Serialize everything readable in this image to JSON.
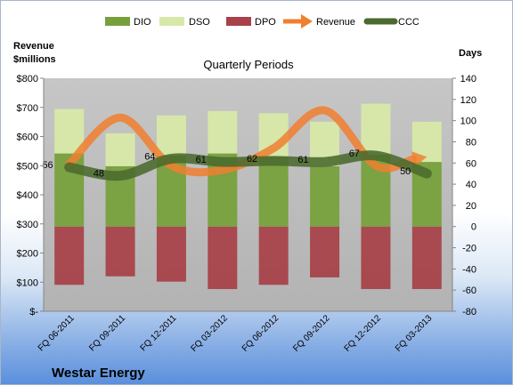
{
  "company_name": "Westar Energy",
  "chart_data": {
    "type": "bar",
    "title": "Quarterly Periods",
    "ylabel_left": "Revenue $millions",
    "ylabel_left_lines": [
      "Revenue",
      "$millions"
    ],
    "ylabel_right": "Days",
    "categories": [
      "FQ 06-2011",
      "FQ 09-2011",
      "FQ 12-2011",
      "FQ 03-2012",
      "FQ 06-2012",
      "FQ 09-2012",
      "FQ 12-2012",
      "FQ 03-2013"
    ],
    "left_axis": {
      "ylim": [
        0,
        800
      ],
      "ticks": [
        0,
        100,
        200,
        300,
        400,
        500,
        600,
        700,
        800
      ],
      "tick_labels": [
        "$-",
        "$100",
        "$200",
        "$300",
        "$400",
        "$500",
        "$600",
        "$700",
        "$800"
      ]
    },
    "right_axis": {
      "ylim": [
        -80,
        140
      ],
      "ticks": [
        -80,
        -60,
        -40,
        -20,
        0,
        20,
        40,
        60,
        80,
        100,
        120,
        140
      ],
      "tick_labels": [
        "-80",
        "-60",
        "-40",
        "-20",
        "0",
        "20",
        "40",
        "60",
        "80",
        "100",
        "120",
        "140"
      ]
    },
    "series": [
      {
        "name": "DIO",
        "type": "stacked-bar",
        "axis": "right",
        "color": "#77a03c",
        "values": [
          69,
          57,
          67,
          69,
          66,
          57,
          68,
          61
        ]
      },
      {
        "name": "DSO",
        "type": "stacked-bar",
        "axis": "right",
        "color": "#d7e9a8",
        "values": [
          42,
          31,
          38,
          40,
          41,
          42,
          48,
          38
        ]
      },
      {
        "name": "DPO",
        "type": "negative-bar",
        "axis": "right",
        "color": "#a8424a",
        "values": [
          55,
          47,
          52,
          59,
          55,
          48,
          59,
          59
        ]
      },
      {
        "name": "Revenue",
        "type": "line",
        "axis": "left",
        "color": "#f07f2f",
        "values": [
          505,
          665,
          500,
          485,
          560,
          690,
          500,
          530
        ]
      },
      {
        "name": "CCC",
        "type": "line",
        "axis": "right",
        "color": "#4a6a2e",
        "values": [
          56,
          48,
          64,
          61,
          62,
          61,
          67,
          50
        ]
      }
    ],
    "data_labels": [
      "56",
      "48",
      "64",
      "61",
      "62",
      "61",
      "67",
      "50"
    ],
    "legend": {
      "position": "top",
      "entries": [
        "DIO",
        "DSO",
        "DPO",
        "Revenue",
        "CCC"
      ]
    },
    "grid": false
  }
}
